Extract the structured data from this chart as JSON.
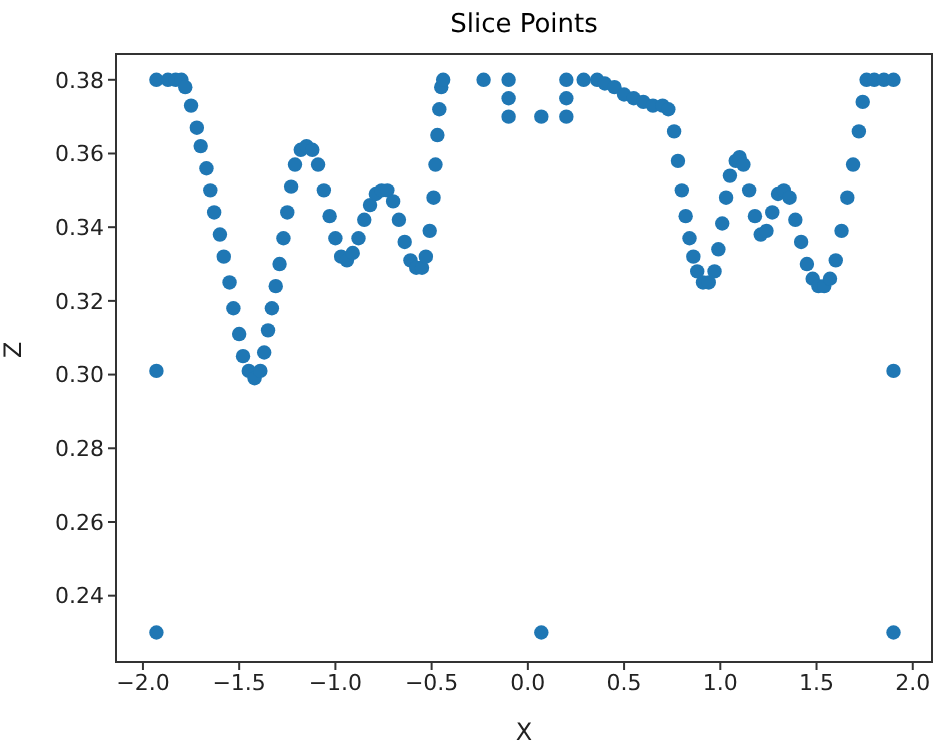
{
  "chart_data": {
    "type": "scatter",
    "title": "Slice Points",
    "xlabel": "X",
    "ylabel": "Z",
    "xlim": [
      -2.14,
      2.1
    ],
    "ylim": [
      0.222,
      0.387
    ],
    "xticks": [
      {
        "value": -2,
        "label": "−2.0"
      },
      {
        "value": -1.5,
        "label": "−1.5"
      },
      {
        "value": -1,
        "label": "−1.0"
      },
      {
        "value": -0.5,
        "label": "−0.5"
      },
      {
        "value": 0,
        "label": "0.0"
      },
      {
        "value": 0.5,
        "label": "0.5"
      },
      {
        "value": 1,
        "label": "1.0"
      },
      {
        "value": 1.5,
        "label": "1.5"
      },
      {
        "value": 2,
        "label": "2.0"
      }
    ],
    "yticks": [
      0.24,
      0.26,
      0.28,
      {
        "value": 0.3,
        "label": "0.30"
      },
      0.32,
      0.34,
      0.36,
      0.38
    ],
    "grid": false,
    "legend": false,
    "marker": "circle",
    "series": [
      {
        "color": "#1f77b4",
        "x": [
          -1.93,
          -1.87,
          -1.83,
          -1.8,
          -1.78,
          -1.75,
          -1.72,
          -1.7,
          -1.67,
          -1.65,
          -1.63,
          -1.6,
          -1.58,
          -1.55,
          -1.53,
          -1.5,
          -1.48,
          -1.45,
          -1.42,
          -1.39,
          -1.37,
          -1.35,
          -1.33,
          -1.31,
          -1.29,
          -1.27,
          -1.25,
          -1.23,
          -1.21,
          -1.18,
          -1.15,
          -1.12,
          -1.09,
          -1.06,
          -1.03,
          -1,
          -0.97,
          -0.94,
          -0.91,
          -0.88,
          -0.85,
          -0.82,
          -0.79,
          -0.76,
          -0.73,
          -0.7,
          -0.67,
          -0.64,
          -0.61,
          -0.58,
          -0.55,
          -0.53,
          -0.51,
          -0.49,
          -0.48,
          -0.47,
          -0.46,
          -0.45,
          -0.44,
          -0.23,
          -0.1,
          -0.1,
          -0.1,
          0.07,
          0.2,
          0.2,
          0.2,
          0.29,
          0.36,
          0.4,
          0.45,
          0.5,
          0.55,
          0.6,
          0.65,
          0.7,
          0.73,
          0.76,
          0.78,
          0.8,
          0.82,
          0.84,
          0.86,
          0.88,
          0.91,
          0.94,
          0.97,
          0.99,
          1.01,
          1.03,
          1.05,
          1.08,
          1.1,
          1.12,
          1.15,
          1.18,
          1.21,
          1.24,
          1.27,
          1.3,
          1.33,
          1.36,
          1.39,
          1.42,
          1.45,
          1.48,
          1.51,
          1.54,
          1.57,
          1.6,
          1.63,
          1.66,
          1.69,
          1.72,
          1.74,
          1.76,
          1.8,
          1.85,
          1.9,
          1.9,
          1.9,
          0.07,
          -1.93,
          -1.93
        ],
        "values": [
          0.38,
          0.38,
          0.38,
          0.38,
          0.378,
          0.373,
          0.367,
          0.362,
          0.356,
          0.35,
          0.344,
          0.338,
          0.332,
          0.325,
          0.318,
          0.311,
          0.305,
          0.301,
          0.299,
          0.301,
          0.306,
          0.312,
          0.318,
          0.324,
          0.33,
          0.337,
          0.344,
          0.351,
          0.357,
          0.361,
          0.362,
          0.361,
          0.357,
          0.35,
          0.343,
          0.337,
          0.332,
          0.331,
          0.333,
          0.337,
          0.342,
          0.346,
          0.349,
          0.35,
          0.35,
          0.347,
          0.342,
          0.336,
          0.331,
          0.329,
          0.329,
          0.332,
          0.339,
          0.348,
          0.357,
          0.365,
          0.372,
          0.378,
          0.38,
          0.38,
          0.38,
          0.375,
          0.37,
          0.37,
          0.38,
          0.375,
          0.37,
          0.38,
          0.38,
          0.379,
          0.378,
          0.376,
          0.375,
          0.374,
          0.373,
          0.373,
          0.372,
          0.366,
          0.358,
          0.35,
          0.343,
          0.337,
          0.332,
          0.328,
          0.325,
          0.325,
          0.328,
          0.334,
          0.341,
          0.348,
          0.354,
          0.358,
          0.359,
          0.357,
          0.35,
          0.343,
          0.338,
          0.339,
          0.344,
          0.349,
          0.35,
          0.348,
          0.342,
          0.336,
          0.33,
          0.326,
          0.324,
          0.324,
          0.326,
          0.331,
          0.339,
          0.348,
          0.357,
          0.366,
          0.374,
          0.38,
          0.38,
          0.38,
          0.38,
          0.301,
          0.23,
          0.23,
          0.23,
          0.301
        ]
      }
    ]
  }
}
